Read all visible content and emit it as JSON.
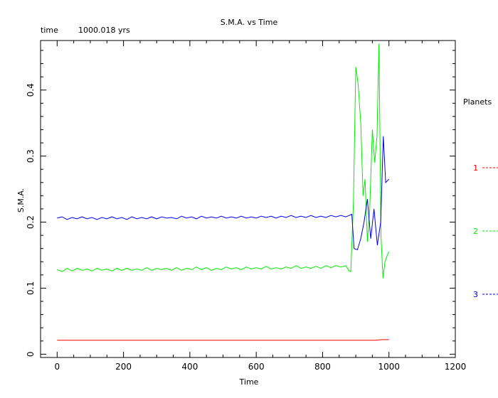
{
  "header": {
    "time_label": "time",
    "time_value": "1000.018 yrs"
  },
  "chart_data": {
    "type": "line",
    "title": "S.M.A. vs Time",
    "xlabel": "Time",
    "ylabel": "S.M.A.",
    "xlim": [
      -50,
      1200
    ],
    "ylim": [
      -0.005,
      0.475
    ],
    "xticks": [
      0,
      200,
      400,
      600,
      800,
      1000,
      1200
    ],
    "xtick_labels": [
      "0",
      "200",
      "400",
      "600",
      "800",
      "1000",
      "1200"
    ],
    "yticks": [
      0,
      0.1,
      0.2,
      0.3,
      0.4
    ],
    "ytick_labels": [
      "0",
      "0.1",
      "0.2",
      "0.3",
      "0.4"
    ],
    "grid": false,
    "legend": {
      "title": "Planets",
      "placement": "right",
      "entries": [
        "1",
        "2",
        "3"
      ]
    },
    "series": [
      {
        "name": "1",
        "color": "#ff0000",
        "x": [
          0,
          100,
          200,
          300,
          400,
          500,
          600,
          700,
          800,
          880,
          960,
          980,
          1000
        ],
        "y": [
          0.021,
          0.021,
          0.021,
          0.021,
          0.021,
          0.021,
          0.021,
          0.021,
          0.021,
          0.021,
          0.021,
          0.022,
          0.022
        ]
      },
      {
        "name": "2",
        "color": "#00ee00",
        "x": [
          0,
          15,
          30,
          45,
          60,
          75,
          90,
          105,
          120,
          135,
          150,
          165,
          180,
          195,
          210,
          225,
          240,
          255,
          270,
          285,
          300,
          315,
          330,
          345,
          360,
          375,
          390,
          405,
          420,
          435,
          450,
          465,
          480,
          495,
          510,
          525,
          540,
          555,
          570,
          585,
          600,
          615,
          630,
          645,
          660,
          675,
          690,
          705,
          720,
          735,
          750,
          765,
          780,
          795,
          810,
          825,
          840,
          855,
          870,
          880,
          885,
          893,
          900,
          907,
          915,
          922,
          928,
          935,
          942,
          950,
          957,
          964,
          970,
          976,
          982,
          988,
          995,
          1000
        ],
        "y": [
          0.128,
          0.125,
          0.13,
          0.126,
          0.13,
          0.127,
          0.129,
          0.126,
          0.13,
          0.127,
          0.129,
          0.126,
          0.13,
          0.127,
          0.13,
          0.127,
          0.129,
          0.127,
          0.131,
          0.127,
          0.13,
          0.128,
          0.13,
          0.127,
          0.131,
          0.127,
          0.13,
          0.128,
          0.132,
          0.128,
          0.131,
          0.127,
          0.13,
          0.128,
          0.132,
          0.129,
          0.131,
          0.128,
          0.132,
          0.129,
          0.131,
          0.129,
          0.133,
          0.129,
          0.131,
          0.129,
          0.132,
          0.13,
          0.134,
          0.13,
          0.132,
          0.13,
          0.133,
          0.13,
          0.134,
          0.131,
          0.134,
          0.132,
          0.134,
          0.126,
          0.125,
          0.23,
          0.435,
          0.41,
          0.35,
          0.24,
          0.265,
          0.17,
          0.22,
          0.34,
          0.29,
          0.33,
          0.47,
          0.18,
          0.115,
          0.14,
          0.15,
          0.155
        ]
      },
      {
        "name": "3",
        "color": "#0000ee",
        "x": [
          0,
          15,
          30,
          45,
          60,
          75,
          90,
          105,
          120,
          135,
          150,
          165,
          180,
          195,
          210,
          225,
          240,
          255,
          270,
          285,
          300,
          315,
          330,
          345,
          360,
          375,
          390,
          405,
          420,
          435,
          450,
          465,
          480,
          495,
          510,
          525,
          540,
          555,
          570,
          585,
          600,
          615,
          630,
          645,
          660,
          675,
          690,
          705,
          720,
          735,
          750,
          765,
          780,
          795,
          810,
          825,
          840,
          855,
          870,
          880,
          888,
          895,
          905,
          915,
          925,
          935,
          945,
          955,
          965,
          975,
          983,
          990,
          1000
        ],
        "y": [
          0.206,
          0.208,
          0.204,
          0.207,
          0.205,
          0.208,
          0.205,
          0.207,
          0.204,
          0.207,
          0.205,
          0.208,
          0.205,
          0.207,
          0.204,
          0.208,
          0.205,
          0.207,
          0.205,
          0.208,
          0.205,
          0.208,
          0.206,
          0.207,
          0.205,
          0.209,
          0.206,
          0.208,
          0.205,
          0.209,
          0.206,
          0.208,
          0.206,
          0.209,
          0.206,
          0.208,
          0.206,
          0.209,
          0.206,
          0.208,
          0.206,
          0.209,
          0.207,
          0.209,
          0.206,
          0.209,
          0.207,
          0.21,
          0.207,
          0.209,
          0.207,
          0.21,
          0.207,
          0.209,
          0.207,
          0.21,
          0.208,
          0.21,
          0.208,
          0.21,
          0.212,
          0.16,
          0.158,
          0.175,
          0.2,
          0.235,
          0.175,
          0.22,
          0.165,
          0.2,
          0.33,
          0.26,
          0.265
        ]
      }
    ]
  }
}
